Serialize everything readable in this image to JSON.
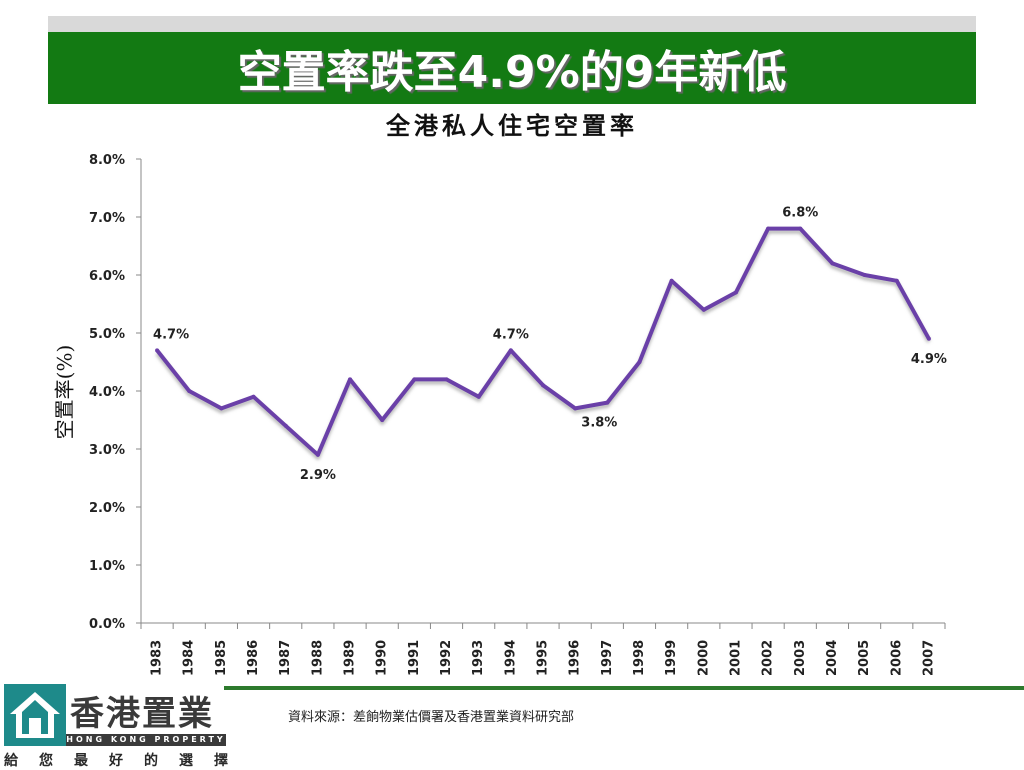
{
  "page": {
    "title": "空置率跌至4.9%的9年新低",
    "source": "資料來源：差餉物業估價署及香港置業資料研究部"
  },
  "logo": {
    "name": "香港置業",
    "english": "HONG KONG PROPERTY",
    "slogan": [
      "給",
      "您",
      "最",
      "好",
      "的",
      "選",
      "擇"
    ]
  },
  "colors": {
    "banner": "#137a13",
    "line": "#6b3fa8",
    "accent_line": "#2d7a2d"
  },
  "chart_data": {
    "type": "line",
    "title": "全港私人住宅空置率",
    "xlabel": "",
    "ylabel": "空置率(%)",
    "ylim": [
      0,
      8
    ],
    "yticks": [
      "0.0%",
      "1.0%",
      "2.0%",
      "3.0%",
      "4.0%",
      "5.0%",
      "6.0%",
      "7.0%",
      "8.0%"
    ],
    "grid": false,
    "categories": [
      "1983",
      "1984",
      "1985",
      "1986",
      "1987",
      "1988",
      "1989",
      "1990",
      "1991",
      "1992",
      "1993",
      "1994",
      "1995",
      "1996",
      "1997",
      "1998",
      "1999",
      "2000",
      "2001",
      "2002",
      "2003",
      "2004",
      "2005",
      "2006",
      "2007"
    ],
    "series": [
      {
        "values": [
          4.7,
          4.0,
          3.7,
          3.9,
          3.4,
          2.9,
          4.2,
          3.5,
          4.2,
          4.2,
          3.9,
          4.7,
          4.1,
          3.7,
          3.8,
          4.5,
          5.9,
          5.4,
          5.7,
          6.8,
          6.8,
          6.2,
          6.0,
          5.9,
          4.9
        ]
      }
    ],
    "data_labels": [
      {
        "index": 0,
        "text": "4.7%",
        "pos": "above-right"
      },
      {
        "index": 5,
        "text": "2.9%",
        "pos": "below"
      },
      {
        "index": 11,
        "text": "4.7%",
        "pos": "above"
      },
      {
        "index": 14,
        "text": "3.8%",
        "pos": "below-left"
      },
      {
        "index": 20,
        "text": "6.8%",
        "pos": "above"
      },
      {
        "index": 24,
        "text": "4.9%",
        "pos": "below"
      }
    ]
  }
}
